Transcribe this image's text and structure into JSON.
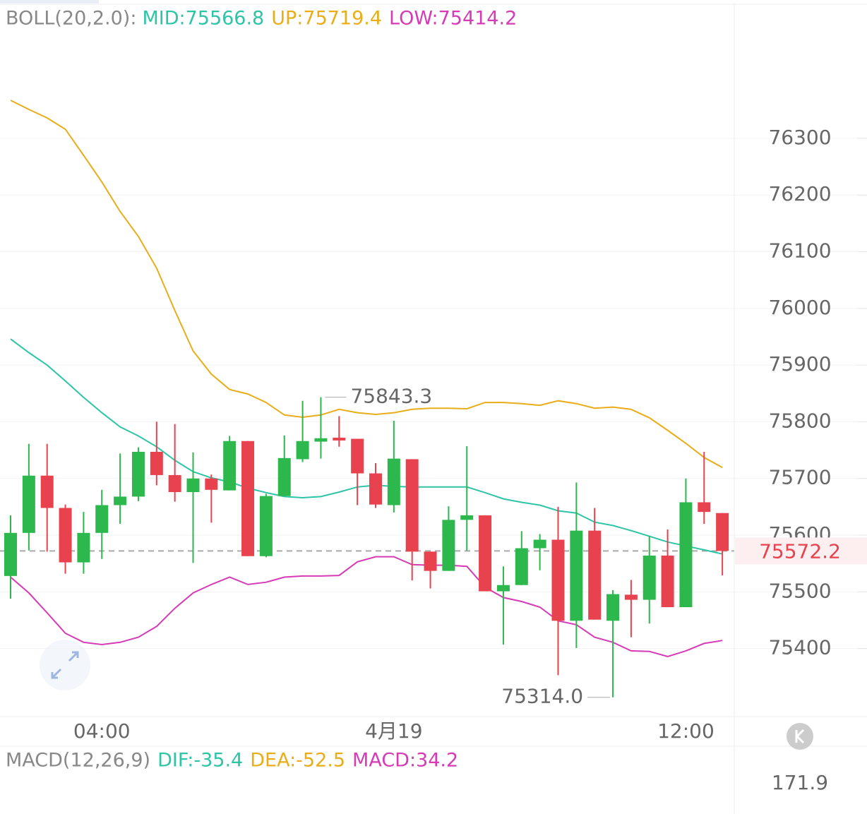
{
  "chart_data": {
    "type": "candlestick",
    "indicator": "BOLL(20,2.0):",
    "categories": [
      null,
      null,
      null,
      null,
      null,
      "04:00",
      null,
      null,
      null,
      null,
      null,
      null,
      null,
      null,
      null,
      null,
      null,
      null,
      null,
      null,
      null,
      "4月19",
      null,
      null,
      null,
      null,
      null,
      null,
      null,
      null,
      null,
      null,
      null,
      null,
      null,
      null,
      null,
      "12:00",
      null,
      null
    ],
    "open": [
      75528,
      75604,
      75705,
      75648,
      75552,
      75604,
      75653,
      75668,
      75747,
      75706,
      75676,
      75700,
      75679,
      75766,
      75563,
      75669,
      75734,
      75765,
      75772,
      75770,
      75709,
      75653,
      75734,
      75571,
      75537,
      75627,
      75635,
      75501,
      75512,
      75577,
      75592,
      75449,
      75608,
      75449,
      75495,
      75486,
      75564,
      75473,
      75658,
      75639
    ],
    "high": [
      75635,
      75761,
      75761,
      75654,
      75641,
      75680,
      75744,
      75755,
      75800,
      75796,
      75746,
      75707,
      75775,
      75766,
      75673,
      75776,
      75837,
      75843.3,
      75810,
      75770,
      75727,
      75802,
      75734,
      75571,
      75651,
      75757,
      75635,
      75545,
      75607,
      75602,
      75650,
      75693,
      75648,
      75503,
      75521,
      75598,
      75610,
      75700,
      75747,
      75639
    ],
    "low": [
      75488,
      75573,
      75571,
      75532,
      75532,
      75558,
      75620,
      75660,
      75688,
      75659,
      75551,
      75622,
      75679,
      75563,
      75561,
      75669,
      75729,
      75735,
      75756,
      75653,
      75648,
      75640,
      75520,
      75506,
      75537,
      75573,
      75501,
      75407,
      75512,
      75538,
      75353,
      75401,
      75451,
      75314,
      75420,
      75444,
      75473,
      75473,
      75620,
      75529
    ],
    "close": [
      75604,
      75705,
      75648,
      75552,
      75604,
      75653,
      75668,
      75747,
      75706,
      75676,
      75700,
      75680,
      75766,
      75563,
      75669,
      75736,
      75766,
      75771,
      75767,
      75709,
      75654,
      75735,
      75571,
      75537,
      75627,
      75635,
      75501,
      75512,
      75577,
      75592,
      75449,
      75608,
      75451,
      75496,
      75486,
      75564,
      75473,
      75658,
      75641,
      75572.2
    ],
    "up_color": "#2db84d",
    "down_color": "#e8424f",
    "series": [
      {
        "name": "MID:75566.8",
        "color": "#2ec4a6",
        "values": [
          75946,
          75922,
          75900,
          75872,
          75843,
          75816,
          75791,
          75775,
          75756,
          75732,
          75712,
          75701,
          75694,
          75683,
          75675,
          75668,
          75666,
          75668,
          75676,
          75685,
          75688,
          75686,
          75685,
          75685,
          75685,
          75685,
          75675,
          75664,
          75658,
          75653,
          75643,
          75639,
          75623,
          75617,
          75608,
          75598,
          75588,
          75581,
          75574,
          75566.8
        ]
      },
      {
        "name": "UP:75719.4",
        "color": "#e9ad19",
        "values": [
          76367,
          76351,
          76336,
          76316,
          76270,
          76223,
          76171,
          76127,
          76071,
          75996,
          75925,
          75884,
          75857,
          75849,
          75834,
          75812,
          75808,
          75812,
          75822,
          75816,
          75813,
          75816,
          75822,
          75824,
          75824,
          75823,
          75834,
          75834,
          75832,
          75829,
          75837,
          75832,
          75824,
          75826,
          75822,
          75807,
          75785,
          75762,
          75737,
          75719.4
        ]
      },
      {
        "name": "LOW:75414.2",
        "color": "#d63bb5",
        "values": [
          75526,
          75498,
          75463,
          75427,
          75411,
          75407,
          75411,
          75420,
          75439,
          75471,
          75498,
          75513,
          75526,
          75513,
          75517,
          75526,
          75528,
          75528,
          75529,
          75553,
          75562,
          75562,
          75548,
          75547,
          75547,
          75545,
          75508,
          75490,
          75483,
          75473,
          75449,
          75442,
          75420,
          75411,
          75396,
          75395,
          75386,
          75396,
          75409,
          75414.2
        ]
      }
    ],
    "ylim": [
      75280,
      76544
    ],
    "yticks": [
      75400,
      75500,
      75600,
      75700,
      75800,
      75900,
      76000,
      76100,
      76200,
      76300
    ],
    "grid": true,
    "high_label": 75843.3,
    "low_label": {
      "value": 75314,
      "label": "75314.0"
    },
    "last_price": 75572.2,
    "macd_header": {
      "title": "MACD(12,26,9)",
      "items": [
        {
          "text": "DIF:-35.4",
          "color": "#2ec4a6"
        },
        {
          "text": "DEA:-52.5",
          "color": "#e9ad19"
        },
        {
          "text": "MACD:34.2",
          "color": "#d63bb5"
        }
      ]
    },
    "macd_axis_label": 171.9
  }
}
